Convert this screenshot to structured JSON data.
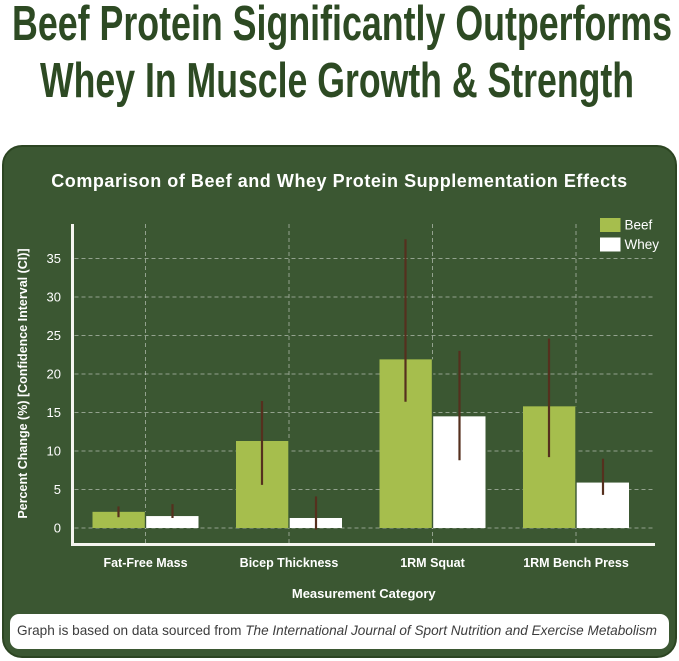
{
  "header": {
    "title": "Beef Protein Significantly Outperforms Whey In Muscle Growth & Strength",
    "title_line1": "Beef Protein Significantly Outperforms",
    "title_line2": "Whey In Muscle Growth & Strength"
  },
  "chart_data": {
    "type": "bar",
    "title": "Comparison of Beef and Whey Protein Supplementation Effects",
    "categories": [
      "Fat-Free Mass",
      "Bicep Thickness",
      "1RM Squat",
      "1RM Bench Press"
    ],
    "series": [
      {
        "name": "Beef",
        "color": "#a6be4d",
        "values": [
          2.1,
          11.3,
          21.9,
          15.8
        ],
        "ci_low": [
          1.4,
          5.6,
          16.4,
          9.2
        ],
        "ci_high": [
          2.8,
          16.5,
          37.5,
          24.6
        ]
      },
      {
        "name": "Whey",
        "color": "#ffffff",
        "values": [
          1.55,
          1.3,
          14.5,
          5.9
        ],
        "ci_low": [
          1.3,
          -0.2,
          8.8,
          4.3
        ],
        "ci_high": [
          3.1,
          4.1,
          23.0,
          9.0
        ]
      }
    ],
    "xlabel": "Measurement Category",
    "ylabel": "Percent Change (%) [Confidence Interval (CI)]",
    "yticks": [
      0,
      5,
      10,
      15,
      20,
      25,
      30,
      35
    ],
    "ylim": [
      -2.3,
      39.5
    ],
    "grid": "dashed",
    "legend_position": "top-right",
    "error_bar_color": "#55301e"
  },
  "footer": {
    "text_regular": "Graph is based on data sourced from ",
    "text_italic": "The International Journal of Sport Nutrition and Exercise Metabolism"
  }
}
